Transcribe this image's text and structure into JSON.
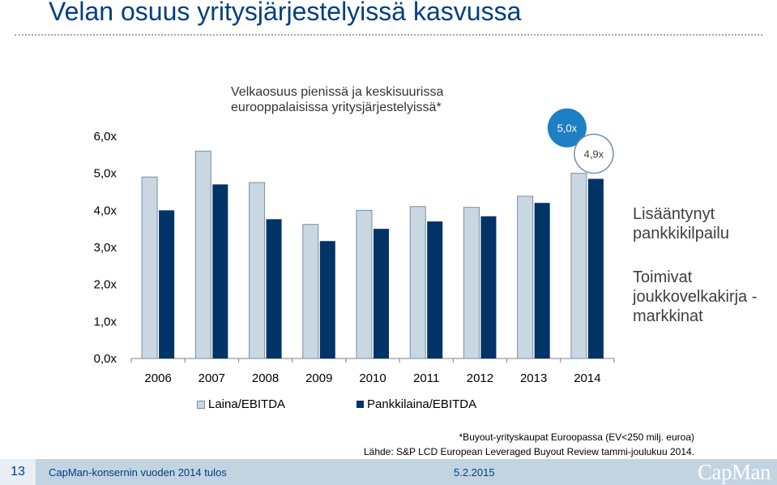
{
  "slide": {
    "title": "Velan osuus yritysjärjestelyissä kasvussa",
    "side_notes": [
      "Lisääntynyt pankkikilpailu",
      "Toimivat joukkovelkakirja -markkinat"
    ],
    "footnotes": [
      "*Buyout-yrityskaupat Euroopassa (EV<250 milj. euroa)",
      "Lähde: S&P LCD European Leveraged Buyout Review tammi-joulukuu 2014."
    ],
    "footer": {
      "page_number": "13",
      "text": "CapMan-konsernin vuoden 2014 tulos",
      "date": "5.2.2015",
      "logo_text": "CapMan"
    }
  },
  "chart_data": {
    "type": "bar",
    "title": "Velkaosuus pienissä ja keskisuurissa eurooppalaisissa yritysjärjestelyissä*",
    "categories": [
      "2006",
      "2007",
      "2008",
      "2009",
      "2010",
      "2011",
      "2012",
      "2013",
      "2014"
    ],
    "series": [
      {
        "name": "Laina/EBITDA",
        "color": "#c9d7e3",
        "values": [
          4.9,
          5.6,
          4.75,
          3.62,
          4.0,
          4.1,
          4.08,
          4.38,
          5.0
        ]
      },
      {
        "name": "Pankkilaina/EBITDA",
        "color": "#003366",
        "values": [
          4.0,
          4.7,
          3.76,
          3.17,
          3.5,
          3.7,
          3.84,
          4.2,
          4.85
        ]
      }
    ],
    "annotations": [
      {
        "label": "5,0x",
        "category": "2014",
        "series": "Laina/EBITDA",
        "color": "#1f7fc4"
      },
      {
        "label": "4,9x",
        "category": "2014",
        "series": "Pankkilaina/EBITDA",
        "color": "#ffffff"
      }
    ],
    "yticks": [
      "0,0x",
      "1,0x",
      "2,0x",
      "3,0x",
      "4,0x",
      "5,0x",
      "6,0x"
    ],
    "ylim": [
      0,
      6
    ],
    "grid": false,
    "legend_position": "bottom"
  }
}
